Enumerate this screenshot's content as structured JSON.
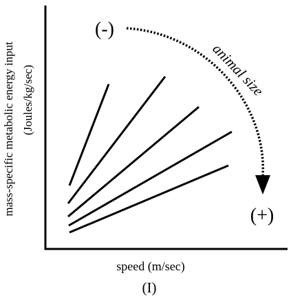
{
  "axes": {
    "ylabel_line1": "mass-specific metabolic energy input",
    "ylabel_line2": "(Joules/kg/sec)",
    "xlabel": "speed (m/sec)"
  },
  "panel_label": "(I)",
  "annotations": {
    "minus": "(-)",
    "plus": "(+)",
    "arrow_label": "animal size"
  }
}
